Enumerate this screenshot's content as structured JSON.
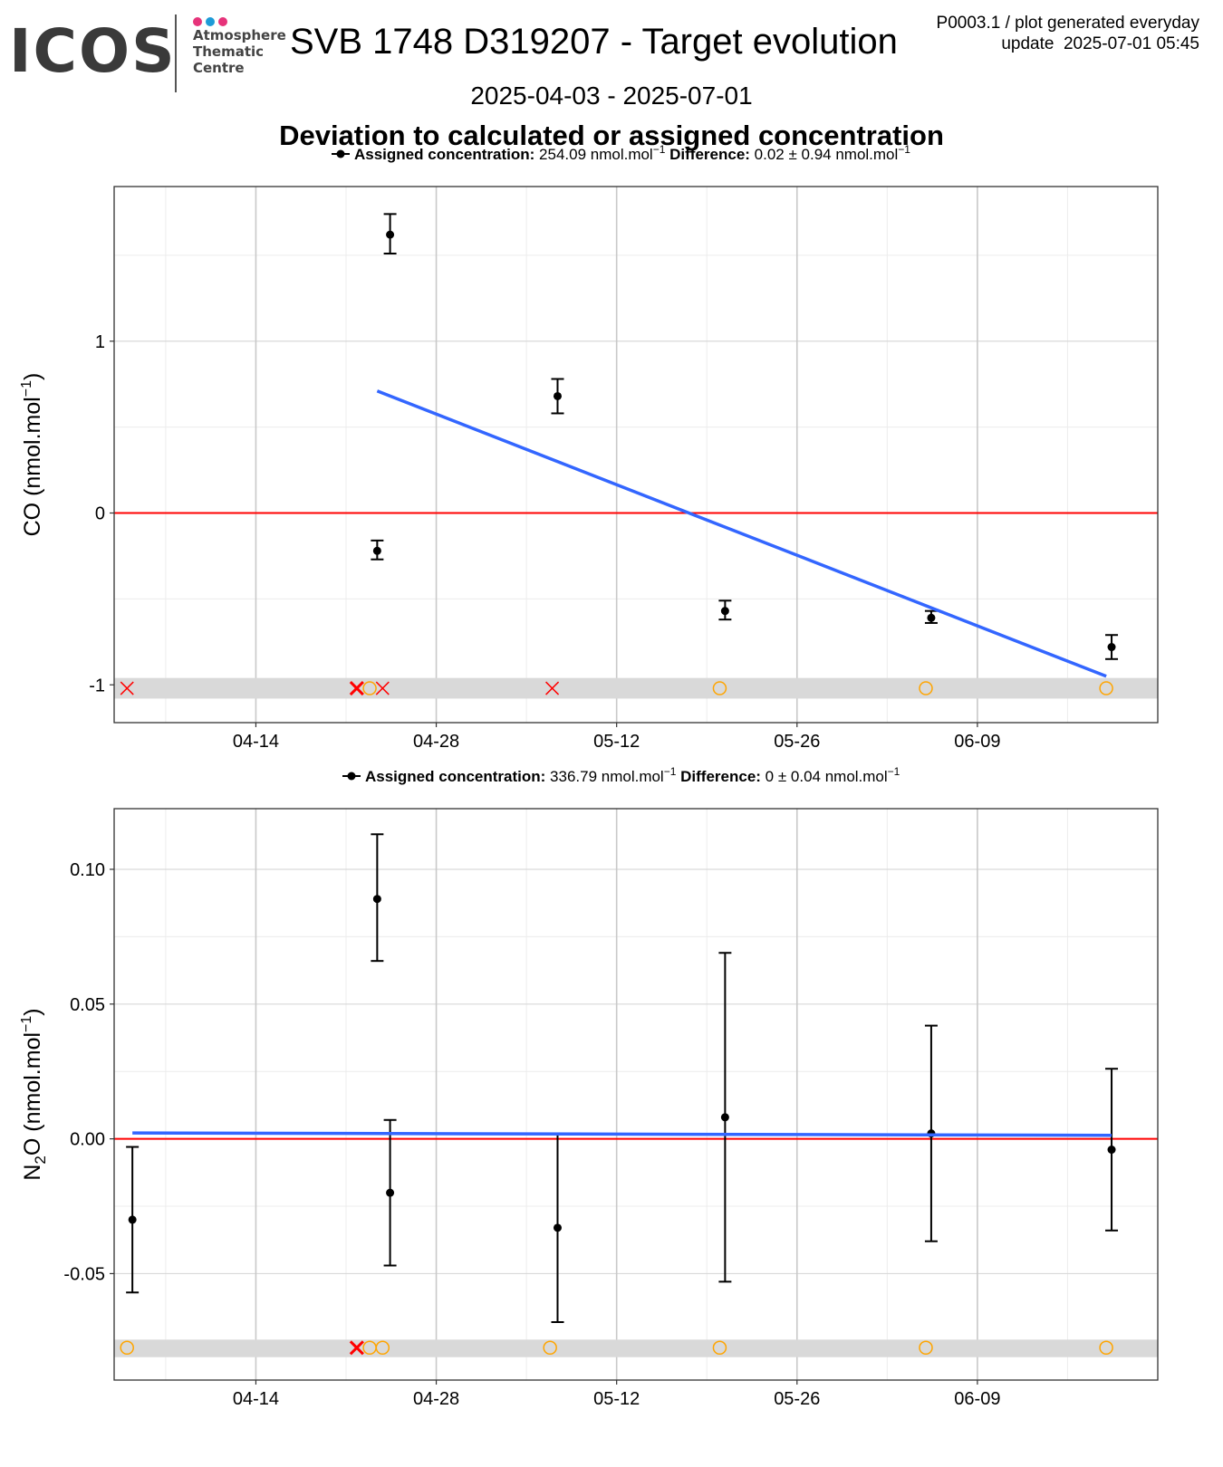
{
  "logo": {
    "text": "ICOS",
    "subtitle_lines": [
      "Atmosphere",
      "Thematic",
      "Centre"
    ],
    "dot_colors": [
      "#e6337a",
      "#1e9bd7",
      "#e6337a"
    ]
  },
  "header": {
    "title": "SVB 1748 D319207 - Target evolution",
    "meta_line1": "P0003.1 / plot generated everyday",
    "meta_line2": "update  2025-07-01 05:45",
    "date_range": "2025-04-03 - 2025-07-01",
    "subtitle": "Deviation to calculated or assigned concentration"
  },
  "colors": {
    "points": "#000000",
    "trend": "#3366ff",
    "zero_line": "#ff0000",
    "flag_cross": "#ff0000",
    "flag_circle": "#ffa500",
    "flag_band": "#d9d9d9"
  },
  "chart_data": [
    {
      "type": "scatter",
      "legend_label_assigned": "Assigned concentration:",
      "assigned_value": "254.09 nmol.mol",
      "legend_label_difference": "Difference:",
      "difference_value": "0.02 ± 0.94 nmol.mol",
      "unit_superscript": "−1",
      "ylabel": "CO (nmol.mol",
      "ylabel_sup": "−1",
      "ylabel_close": ")",
      "x_axis": "date",
      "xlim": [
        "2025-04-03",
        "2025-06-23"
      ],
      "ylim": [
        -1.22,
        1.9
      ],
      "y_ticks": [
        {
          "v": 1,
          "label": "1"
        },
        {
          "v": 0,
          "label": "0"
        },
        {
          "v": -1,
          "label": "-1"
        }
      ],
      "x_ticks": [
        {
          "date": "2025-04-14",
          "label": "04-14"
        },
        {
          "date": "2025-04-28",
          "label": "04-28"
        },
        {
          "date": "2025-05-12",
          "label": "05-12"
        },
        {
          "date": "2025-05-26",
          "label": "05-26"
        },
        {
          "date": "2025-06-09",
          "label": "06-09"
        }
      ],
      "points": [
        {
          "x": "2025-04-23 10:00",
          "y": -0.22,
          "ylo": -0.27,
          "yhi": -0.16
        },
        {
          "x": "2025-04-24 10:00",
          "y": 1.62,
          "ylo": 1.51,
          "yhi": 1.74
        },
        {
          "x": "2025-05-07 10:00",
          "y": 0.68,
          "ylo": 0.58,
          "yhi": 0.78
        },
        {
          "x": "2025-05-20 10:00",
          "y": -0.57,
          "ylo": -0.62,
          "yhi": -0.51
        },
        {
          "x": "2025-06-05 10:00",
          "y": -0.61,
          "ylo": -0.64,
          "yhi": -0.57
        },
        {
          "x": "2025-06-19 10:00",
          "y": -0.78,
          "ylo": -0.85,
          "yhi": -0.71
        }
      ],
      "trend": {
        "x0": "2025-04-23 10:00",
        "y0": 0.71,
        "x1": "2025-06-19 00:00",
        "y1": -0.95
      },
      "flag_band_y": [
        -1.08,
        -0.96
      ],
      "flags": [
        {
          "x": "2025-04-04 00:00",
          "y": -1.02,
          "kind": "cross"
        },
        {
          "x": "2025-04-21 20:00",
          "y": -1.02,
          "kind": "cross-bold"
        },
        {
          "x": "2025-04-22 20:00",
          "y": -1.02,
          "kind": "circle"
        },
        {
          "x": "2025-04-23 20:00",
          "y": -1.02,
          "kind": "cross"
        },
        {
          "x": "2025-05-07 00:00",
          "y": -1.02,
          "kind": "cross"
        },
        {
          "x": "2025-05-20 00:00",
          "y": -1.02,
          "kind": "circle"
        },
        {
          "x": "2025-06-05 00:00",
          "y": -1.02,
          "kind": "circle"
        },
        {
          "x": "2025-06-19 00:00",
          "y": -1.02,
          "kind": "circle"
        }
      ]
    },
    {
      "type": "scatter",
      "legend_label_assigned": "Assigned concentration:",
      "assigned_value": "336.79 nmol.mol",
      "legend_label_difference": "Difference:",
      "difference_value": "0 ± 0.04 nmol.mol",
      "unit_superscript": "−1",
      "ylabel": "N",
      "ylabel_sub": "2",
      "ylabel_rest": "O (nmol.mol",
      "ylabel_sup": "−1",
      "ylabel_close": ")",
      "x_axis": "date",
      "xlim": [
        "2025-04-03",
        "2025-06-23"
      ],
      "ylim": [
        -0.0895,
        0.1225
      ],
      "y_ticks": [
        {
          "v": 0.1,
          "label": "0.10"
        },
        {
          "v": 0.05,
          "label": "0.05"
        },
        {
          "v": 0,
          "label": "0.00"
        },
        {
          "v": -0.05,
          "label": "-0.05"
        }
      ],
      "x_ticks": [
        {
          "date": "2025-04-14",
          "label": "04-14"
        },
        {
          "date": "2025-04-28",
          "label": "04-28"
        },
        {
          "date": "2025-05-12",
          "label": "05-12"
        },
        {
          "date": "2025-05-26",
          "label": "05-26"
        },
        {
          "date": "2025-06-09",
          "label": "06-09"
        }
      ],
      "points": [
        {
          "x": "2025-04-04 10:00",
          "y": -0.03,
          "ylo": -0.057,
          "yhi": -0.003
        },
        {
          "x": "2025-04-23 10:00",
          "y": 0.089,
          "ylo": 0.066,
          "yhi": 0.113
        },
        {
          "x": "2025-04-24 10:00",
          "y": -0.02,
          "ylo": -0.047,
          "yhi": 0.007
        },
        {
          "x": "2025-05-07 10:00",
          "y": -0.033,
          "ylo": -0.068,
          "yhi": 0.002
        },
        {
          "x": "2025-05-20 10:00",
          "y": 0.008,
          "ylo": -0.053,
          "yhi": 0.069
        },
        {
          "x": "2025-06-05 10:00",
          "y": 0.002,
          "ylo": -0.038,
          "yhi": 0.042
        },
        {
          "x": "2025-06-19 10:00",
          "y": -0.004,
          "ylo": -0.034,
          "yhi": 0.026
        }
      ],
      "trend": {
        "x0": "2025-04-04 10:00",
        "y0": 0.0022,
        "x1": "2025-06-19 10:00",
        "y1": 0.0013
      },
      "flag_band_y": [
        -0.081,
        -0.0745
      ],
      "flags": [
        {
          "x": "2025-04-04 00:00",
          "y": -0.0775,
          "kind": "circle"
        },
        {
          "x": "2025-04-21 20:00",
          "y": -0.0775,
          "kind": "cross-bold"
        },
        {
          "x": "2025-04-22 20:00",
          "y": -0.0775,
          "kind": "circle"
        },
        {
          "x": "2025-04-23 20:00",
          "y": -0.0775,
          "kind": "circle"
        },
        {
          "x": "2025-05-06 20:00",
          "y": -0.0775,
          "kind": "circle"
        },
        {
          "x": "2025-05-20 00:00",
          "y": -0.0775,
          "kind": "circle"
        },
        {
          "x": "2025-06-05 00:00",
          "y": -0.0775,
          "kind": "circle"
        },
        {
          "x": "2025-06-19 00:00",
          "y": -0.0775,
          "kind": "circle"
        }
      ]
    }
  ]
}
